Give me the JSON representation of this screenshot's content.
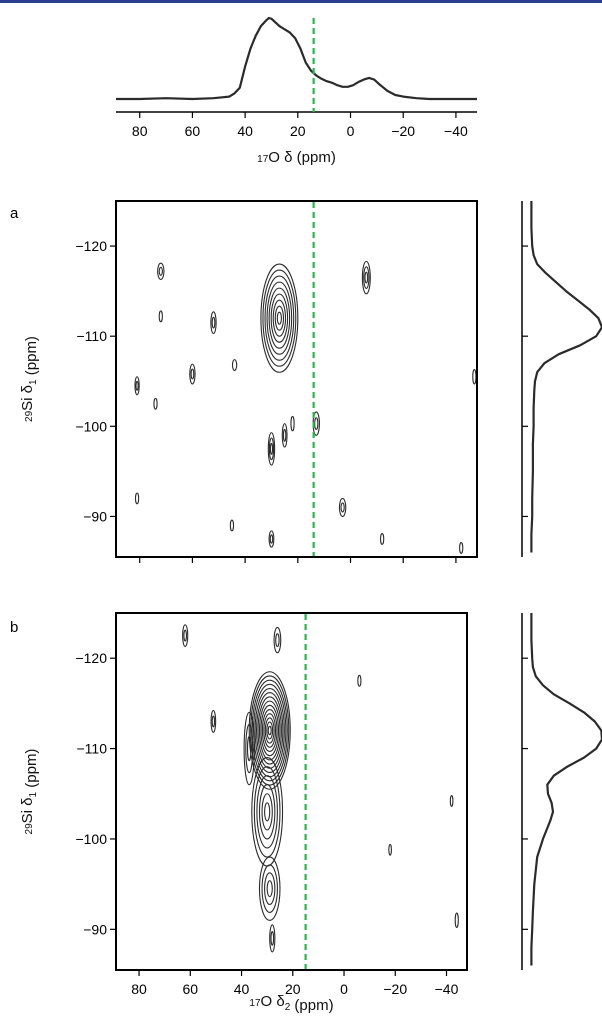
{
  "colors": {
    "trace": "#2b2b2b",
    "guide": "#2bb64b",
    "axis": "#000000",
    "topbar": "#2a3d8f"
  },
  "chart_data": [
    {
      "type": "line",
      "panel_label": "",
      "xlabel": {
        "sup": "17",
        "main": "O δ (ppm)"
      },
      "xlim": [
        89,
        -48
      ],
      "x_ticks": [
        80,
        60,
        40,
        20,
        0,
        -20,
        -40
      ],
      "x_tick_labels": [
        "80",
        "60",
        "40",
        "20",
        "0",
        "−20",
        "−40"
      ],
      "guide_x": 14,
      "series": [
        {
          "name": "",
          "x": [
            89,
            80,
            70,
            60,
            52,
            46,
            44,
            42,
            40,
            38,
            36,
            34,
            32,
            31,
            30,
            29,
            27,
            25,
            23,
            21,
            19,
            17,
            15,
            13,
            11,
            9,
            7,
            5,
            3,
            1,
            -1,
            -3,
            -5,
            -7,
            -9,
            -11,
            -14,
            -17,
            -20,
            -25,
            -30,
            -35,
            -40,
            -48
          ],
          "y": [
            0.0,
            0.0,
            0.01,
            0.0,
            0.01,
            0.03,
            0.07,
            0.14,
            0.4,
            0.62,
            0.78,
            0.9,
            0.97,
            1.0,
            0.99,
            0.96,
            0.9,
            0.86,
            0.82,
            0.75,
            0.62,
            0.45,
            0.35,
            0.29,
            0.25,
            0.22,
            0.2,
            0.17,
            0.15,
            0.15,
            0.17,
            0.21,
            0.24,
            0.26,
            0.24,
            0.18,
            0.1,
            0.05,
            0.03,
            0.01,
            0.0,
            0.0,
            0.0,
            0.0
          ]
        }
      ]
    },
    {
      "type": "contour",
      "panel_label": "a",
      "xlim": [
        89,
        -48
      ],
      "ylim": [
        -85.5,
        -125
      ],
      "y_ticks": [
        -120,
        -110,
        -100,
        -90
      ],
      "y_tick_labels": [
        "−120",
        "−110",
        "−100",
        "−90"
      ],
      "ylabel": {
        "sup": "29",
        "main": "Si δ",
        "sub": "1",
        "tail": " (ppm)"
      },
      "guide_x": 14,
      "peaks": [
        {
          "x": 27,
          "y": -112,
          "rx": 7,
          "ry": 6,
          "levels": 9
        },
        {
          "x": 72,
          "y": -117.2,
          "rx": 1.2,
          "ry": 0.9,
          "levels": 2
        },
        {
          "x": 72,
          "y": -112.2,
          "rx": 0.6,
          "ry": 0.6,
          "levels": 1
        },
        {
          "x": 52,
          "y": -111.5,
          "rx": 1.0,
          "ry": 1.2,
          "levels": 2
        },
        {
          "x": 60,
          "y": -105.8,
          "rx": 1.0,
          "ry": 1.1,
          "levels": 2
        },
        {
          "x": 44,
          "y": -106.8,
          "rx": 0.8,
          "ry": 0.6,
          "levels": 1
        },
        {
          "x": 81,
          "y": -104.5,
          "rx": 0.8,
          "ry": 1.0,
          "levels": 2
        },
        {
          "x": 74,
          "y": -102.5,
          "rx": 0.6,
          "ry": 0.6,
          "levels": 1
        },
        {
          "x": -6,
          "y": -116.5,
          "rx": 1.5,
          "ry": 1.8,
          "levels": 3
        },
        {
          "x": 13,
          "y": -100.3,
          "rx": 1.2,
          "ry": 1.3,
          "levels": 2
        },
        {
          "x": 30,
          "y": -97.5,
          "rx": 1.2,
          "ry": 1.8,
          "levels": 3
        },
        {
          "x": 25,
          "y": -99,
          "rx": 0.9,
          "ry": 1.3,
          "levels": 2
        },
        {
          "x": 22,
          "y": -100.3,
          "rx": 0.6,
          "ry": 0.8,
          "levels": 1
        },
        {
          "x": 81,
          "y": -92,
          "rx": 0.6,
          "ry": 0.6,
          "levels": 1
        },
        {
          "x": 45,
          "y": -89,
          "rx": 0.6,
          "ry": 0.6,
          "levels": 1
        },
        {
          "x": 30,
          "y": -87.5,
          "rx": 0.9,
          "ry": 0.9,
          "levels": 2
        },
        {
          "x": 3,
          "y": -91,
          "rx": 1.2,
          "ry": 1.0,
          "levels": 2
        },
        {
          "x": -12,
          "y": -87.5,
          "rx": 0.6,
          "ry": 0.6,
          "levels": 1
        },
        {
          "x": -42,
          "y": -86.5,
          "rx": 0.6,
          "ry": 0.6,
          "levels": 1
        },
        {
          "x": -47,
          "y": -105.5,
          "rx": 0.6,
          "ry": 0.8,
          "levels": 1
        }
      ]
    },
    {
      "type": "contour",
      "panel_label": "b",
      "xlim": [
        89,
        -48
      ],
      "ylim": [
        -85.5,
        -125
      ],
      "x_ticks": [
        80,
        60,
        40,
        20,
        0,
        -20,
        -40
      ],
      "x_tick_labels": [
        "80",
        "60",
        "40",
        "20",
        "0",
        "−20",
        "−40"
      ],
      "y_ticks": [
        -120,
        -110,
        -100,
        -90
      ],
      "y_tick_labels": [
        "−120",
        "−110",
        "−100",
        "−90"
      ],
      "xlabel": {
        "sup": "17",
        "main": "O δ",
        "sub": "2",
        "tail": " (ppm)"
      },
      "ylabel": {
        "sup": "29",
        "main": "Si δ",
        "sub": "1",
        "tail": " (ppm)"
      },
      "guide_x": 15,
      "peaks": [
        {
          "x": 29,
          "y": -112,
          "rx": 8,
          "ry": 6.5,
          "levels": 14
        },
        {
          "x": 30,
          "y": -103,
          "rx": 6,
          "ry": 6,
          "levels": 6
        },
        {
          "x": 29,
          "y": -94.5,
          "rx": 4,
          "ry": 3.5,
          "levels": 4
        },
        {
          "x": 37,
          "y": -110,
          "rx": 2,
          "ry": 4,
          "levels": 3
        },
        {
          "x": 28,
          "y": -89,
          "rx": 1,
          "ry": 1.5,
          "levels": 2
        },
        {
          "x": 62,
          "y": -122.5,
          "rx": 1.0,
          "ry": 1.2,
          "levels": 2
        },
        {
          "x": 51,
          "y": -113,
          "rx": 0.9,
          "ry": 1.2,
          "levels": 2
        },
        {
          "x": 26,
          "y": -122,
          "rx": 1.3,
          "ry": 1.4,
          "levels": 2
        },
        {
          "x": -6,
          "y": -117.5,
          "rx": 0.6,
          "ry": 0.6,
          "levels": 1
        },
        {
          "x": -18,
          "y": -98.8,
          "rx": 0.5,
          "ry": 0.6,
          "levels": 1
        },
        {
          "x": -42,
          "y": -104.2,
          "rx": 0.5,
          "ry": 0.6,
          "levels": 1
        },
        {
          "x": -44,
          "y": -91,
          "rx": 0.6,
          "ry": 0.8,
          "levels": 1
        }
      ]
    },
    {
      "type": "line",
      "panel_label": "",
      "orientation": "vertical",
      "ylim": [
        -85.5,
        -125
      ],
      "series": [
        {
          "name": "",
          "x": [
            -125,
            -122,
            -120,
            -119,
            -118,
            -117,
            -116,
            -115,
            -114,
            -113,
            -112,
            -111,
            -110,
            -109,
            -108,
            -107,
            -106,
            -105,
            -104,
            -102,
            -100,
            -98,
            -95,
            -92,
            -90,
            -88,
            -86
          ],
          "y": [
            0.02,
            0.02,
            0.03,
            0.05,
            0.1,
            0.22,
            0.36,
            0.5,
            0.66,
            0.82,
            0.95,
            1.0,
            0.92,
            0.7,
            0.4,
            0.2,
            0.1,
            0.07,
            0.06,
            0.05,
            0.05,
            0.04,
            0.04,
            0.03,
            0.03,
            0.02,
            0.02
          ]
        }
      ]
    },
    {
      "type": "line",
      "panel_label": "",
      "orientation": "vertical",
      "ylim": [
        -85.5,
        -125
      ],
      "series": [
        {
          "name": "",
          "x": [
            -125,
            -122,
            -120,
            -119,
            -118,
            -117,
            -116,
            -115,
            -114,
            -113,
            -112,
            -111,
            -110,
            -109,
            -108,
            -107,
            -106,
            -105,
            -104,
            -103,
            -102,
            -100,
            -98,
            -95,
            -92,
            -90,
            -88,
            -86
          ],
          "y": [
            0.02,
            0.02,
            0.03,
            0.04,
            0.08,
            0.18,
            0.33,
            0.55,
            0.75,
            0.9,
            0.99,
            1.0,
            0.92,
            0.75,
            0.52,
            0.33,
            0.24,
            0.25,
            0.3,
            0.32,
            0.28,
            0.18,
            0.1,
            0.06,
            0.04,
            0.03,
            0.02,
            0.02
          ]
        }
      ]
    }
  ]
}
